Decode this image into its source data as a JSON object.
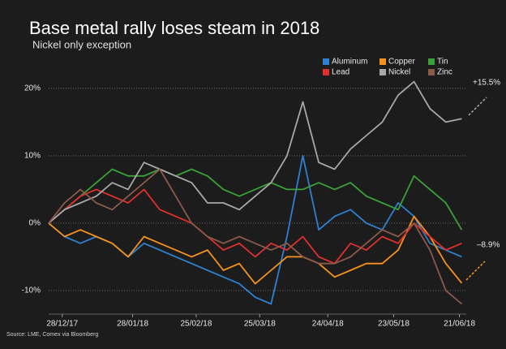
{
  "chart_data": {
    "type": "line",
    "title": "Base metal rally loses steam in 2018",
    "subtitle": "Nickel only exception",
    "source": "Source: LME, Comex via Bloomberg",
    "x": [
      "2017-12-22",
      "2017-12-29",
      "2018-01-05",
      "2018-01-12",
      "2018-01-19",
      "2018-01-26",
      "2018-02-02",
      "2018-02-09",
      "2018-02-16",
      "2018-02-23",
      "2018-03-02",
      "2018-03-09",
      "2018-03-16",
      "2018-03-23",
      "2018-03-30",
      "2018-04-06",
      "2018-04-13",
      "2018-04-20",
      "2018-04-27",
      "2018-05-04",
      "2018-05-11",
      "2018-05-18",
      "2018-05-25",
      "2018-06-01",
      "2018-06-08",
      "2018-06-15",
      "2018-06-22"
    ],
    "xlim": [
      "2017-12-22",
      "2018-06-24"
    ],
    "xticks": [
      {
        "value": "2017-12-28",
        "label": "28/12/17"
      },
      {
        "value": "2018-01-28",
        "label": "28/01/18"
      },
      {
        "value": "2018-02-25",
        "label": "25/02/18"
      },
      {
        "value": "2018-03-25",
        "label": "25/03/18"
      },
      {
        "value": "2018-04-24",
        "label": "24/04/18"
      },
      {
        "value": "2018-05-23",
        "label": "23/05/18"
      },
      {
        "value": "2018-06-21",
        "label": "21/06/18"
      }
    ],
    "ylim": [
      -13.5,
      23
    ],
    "yticks": [
      {
        "value": 20,
        "label": "20%"
      },
      {
        "value": 10,
        "label": "10%"
      },
      {
        "value": 0,
        "label": "0%"
      },
      {
        "value": -10,
        "label": "-10%"
      }
    ],
    "grid": true,
    "legend": "top-right",
    "series": [
      {
        "name": "Aluminum",
        "color": "#2f80d0",
        "values": [
          0,
          -2,
          -3,
          -2,
          -3,
          -5,
          -3,
          -4,
          -5,
          -6,
          -7,
          -8,
          -9,
          -11,
          -12,
          -2,
          10,
          -1,
          1,
          2,
          0,
          -1,
          3,
          1,
          -3,
          -4,
          -5
        ]
      },
      {
        "name": "Copper",
        "color": "#f7921e",
        "values": [
          0,
          -2,
          -1,
          -2,
          -3,
          -5,
          -2,
          -3,
          -4,
          -5,
          -4,
          -7,
          -6,
          -9,
          -7,
          -5,
          -5,
          -6,
          -8,
          -7,
          -6,
          -6,
          -4,
          1,
          -2,
          -6,
          -8.9
        ]
      },
      {
        "name": "Tin",
        "color": "#3aa13a",
        "values": [
          0,
          2,
          4,
          6,
          8,
          7,
          7,
          8,
          7,
          8,
          7,
          5,
          4,
          5,
          6,
          5,
          5,
          6,
          5,
          6,
          4,
          3,
          2,
          7,
          5,
          3,
          -1
        ]
      },
      {
        "name": "Lead",
        "color": "#e0302e",
        "values": [
          0,
          2,
          4,
          5,
          4,
          3,
          5,
          2,
          1,
          0,
          -2,
          -4,
          -3,
          -5,
          -3,
          -4,
          -2,
          -5,
          -6,
          -3,
          -4,
          -2,
          -3,
          0,
          -2,
          -4,
          -3
        ]
      },
      {
        "name": "Nickel",
        "color": "#a8a8a8",
        "values": [
          0,
          2,
          3,
          4,
          6,
          5,
          9,
          8,
          7,
          6,
          3,
          3,
          2,
          4,
          6,
          10,
          18,
          9,
          8,
          11,
          13,
          15,
          19,
          21,
          17,
          15,
          15.5
        ]
      },
      {
        "name": "Zinc",
        "color": "#8b5a4a",
        "values": [
          0,
          3,
          5,
          3,
          2,
          4,
          6,
          8,
          4,
          0,
          -2,
          -3,
          -2,
          -3,
          -4,
          -3,
          -5,
          -6,
          -6,
          -5,
          -3,
          -1,
          -2,
          0,
          -4,
          -10,
          -12
        ]
      }
    ],
    "annotations": [
      {
        "text": "+15.5%",
        "color": "#a8a8a8"
      },
      {
        "text": "–8.9%",
        "color": "#f7921e"
      }
    ]
  }
}
